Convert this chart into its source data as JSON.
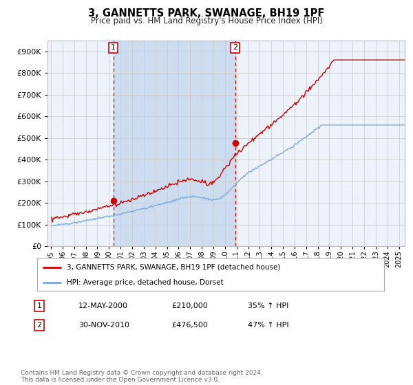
{
  "title": "3, GANNETTS PARK, SWANAGE, BH19 1PF",
  "subtitle": "Price paid vs. HM Land Registry's House Price Index (HPI)",
  "legend_line1": "3, GANNETTS PARK, SWANAGE, BH19 1PF (detached house)",
  "legend_line2": "HPI: Average price, detached house, Dorset",
  "annotation1_date": "12-MAY-2000",
  "annotation1_price": "£210,000",
  "annotation1_hpi": "35% ↑ HPI",
  "annotation2_date": "30-NOV-2010",
  "annotation2_price": "£476,500",
  "annotation2_hpi": "47% ↑ HPI",
  "footer": "Contains HM Land Registry data © Crown copyright and database right 2024.\nThis data is licensed under the Open Government Licence v3.0.",
  "hpi_color": "#7aaadd",
  "price_color": "#cc0000",
  "bg_color": "#ffffff",
  "plot_bg_color": "#eef2fa",
  "grid_color": "#cccccc",
  "shading_color": "#cddcee",
  "ylim": [
    0,
    950000
  ],
  "xlim_start": 1994.7,
  "xlim_end": 2025.5,
  "sale1_year": 2000,
  "sale1_month": 5,
  "sale1_y": 210000,
  "sale2_year": 2010,
  "sale2_month": 11,
  "sale2_y": 476500
}
